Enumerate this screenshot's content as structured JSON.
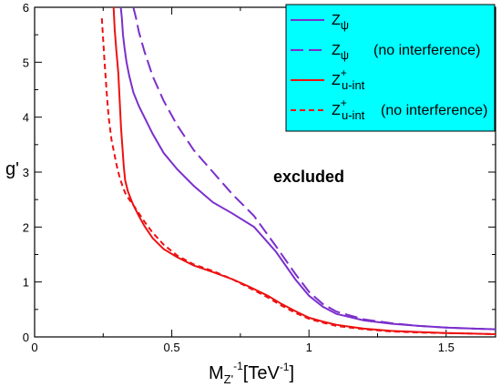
{
  "chart_data": {
    "type": "line",
    "title": "",
    "xlabel": {
      "main": "M",
      "sub": "Z'",
      "sup1": "-1",
      "mid": "[TeV",
      "sup2": "-1",
      "end": "]"
    },
    "ylabel": "g'",
    "xlim": [
      0,
      1.68
    ],
    "ylim": [
      0,
      6
    ],
    "x_ticks": [
      "0",
      "0.5",
      "1",
      "1.5"
    ],
    "x_tick_values": [
      0,
      0.5,
      1,
      1.5
    ],
    "y_ticks": [
      "0",
      "1",
      "2",
      "3",
      "4",
      "5",
      "6"
    ],
    "y_tick_values": [
      0,
      1,
      2,
      3,
      4,
      5,
      6
    ],
    "grid": false,
    "legend_position": "top-right",
    "legend_background": "#00ffff",
    "annotation": "excluded",
    "series": [
      {
        "name": "Z_ψ",
        "legend": {
          "base": "Z",
          "sub": "ψ",
          "sup": "",
          "suffix": ""
        },
        "color": "#7b2fcc",
        "dash": "solid",
        "x": [
          0.314,
          0.318,
          0.322,
          0.328,
          0.335,
          0.345,
          0.36,
          0.38,
          0.4,
          0.43,
          0.47,
          0.52,
          0.58,
          0.65,
          0.72,
          0.8,
          0.88,
          0.95,
          1.0,
          1.05,
          1.1,
          1.2,
          1.3,
          1.4,
          1.5,
          1.6,
          1.68
        ],
        "y": [
          6.0,
          5.8,
          5.5,
          5.25,
          5.0,
          4.75,
          4.45,
          4.2,
          4.0,
          3.7,
          3.35,
          3.05,
          2.75,
          2.45,
          2.25,
          2.0,
          1.55,
          1.05,
          0.75,
          0.55,
          0.42,
          0.3,
          0.24,
          0.2,
          0.17,
          0.15,
          0.14
        ]
      },
      {
        "name": "Z_ψ (no interference)",
        "legend": {
          "base": "Z",
          "sub": "ψ",
          "sup": "",
          "suffix": "(no interference)"
        },
        "color": "#7b2fcc",
        "dash": "long",
        "x": [
          0.36,
          0.37,
          0.38,
          0.4,
          0.43,
          0.47,
          0.52,
          0.58,
          0.65,
          0.72,
          0.8,
          0.88,
          0.95,
          1.0,
          1.05,
          1.1,
          1.2,
          1.3,
          1.4,
          1.5,
          1.6,
          1.68
        ],
        "y": [
          6.0,
          5.8,
          5.55,
          5.2,
          4.75,
          4.3,
          3.85,
          3.4,
          3.0,
          2.6,
          2.2,
          1.65,
          1.15,
          0.82,
          0.6,
          0.46,
          0.32,
          0.25,
          0.2,
          0.17,
          0.15,
          0.14
        ]
      },
      {
        "name": "Z+u-int",
        "legend": {
          "base": "Z",
          "sub": "u-int",
          "sup": "+",
          "suffix": ""
        },
        "color": "#ee1111",
        "dash": "solid",
        "x": [
          0.288,
          0.292,
          0.298,
          0.305,
          0.31,
          0.315,
          0.32,
          0.325,
          0.33,
          0.335,
          0.34,
          0.35,
          0.36,
          0.38,
          0.4,
          0.43,
          0.47,
          0.52,
          0.58,
          0.65,
          0.72,
          0.78,
          0.85,
          0.9,
          0.95,
          1.0,
          1.05,
          1.1,
          1.2,
          1.3,
          1.4,
          1.5,
          1.6,
          1.68
        ],
        "y": [
          6.0,
          5.6,
          5.2,
          4.8,
          4.3,
          3.8,
          3.45,
          3.1,
          2.85,
          2.75,
          2.65,
          2.52,
          2.4,
          2.2,
          2.02,
          1.8,
          1.6,
          1.45,
          1.3,
          1.18,
          1.05,
          0.92,
          0.75,
          0.6,
          0.47,
          0.35,
          0.28,
          0.22,
          0.15,
          0.11,
          0.09,
          0.07,
          0.06,
          0.05
        ]
      },
      {
        "name": "Z+u-int (no interference)",
        "legend": {
          "base": "Z",
          "sub": "u-int",
          "sup": "+",
          "suffix": "(no interference)"
        },
        "color": "#ee1111",
        "dash": "short",
        "x": [
          0.245,
          0.25,
          0.255,
          0.26,
          0.265,
          0.27,
          0.28,
          0.29,
          0.3,
          0.31,
          0.32,
          0.33,
          0.345,
          0.36,
          0.38,
          0.4,
          0.43,
          0.47,
          0.52,
          0.58,
          0.65,
          0.72,
          0.78,
          0.85,
          0.9,
          0.95,
          1.0,
          1.05,
          1.1,
          1.2,
          1.3,
          1.4,
          1.5,
          1.6,
          1.68
        ],
        "y": [
          5.8,
          5.4,
          5.0,
          4.65,
          4.3,
          4.0,
          3.6,
          3.35,
          3.1,
          2.9,
          2.75,
          2.62,
          2.5,
          2.4,
          2.25,
          2.1,
          1.9,
          1.68,
          1.48,
          1.32,
          1.2,
          1.05,
          0.9,
          0.72,
          0.57,
          0.44,
          0.33,
          0.26,
          0.2,
          0.14,
          0.1,
          0.08,
          0.07,
          0.06,
          0.05
        ]
      }
    ]
  }
}
